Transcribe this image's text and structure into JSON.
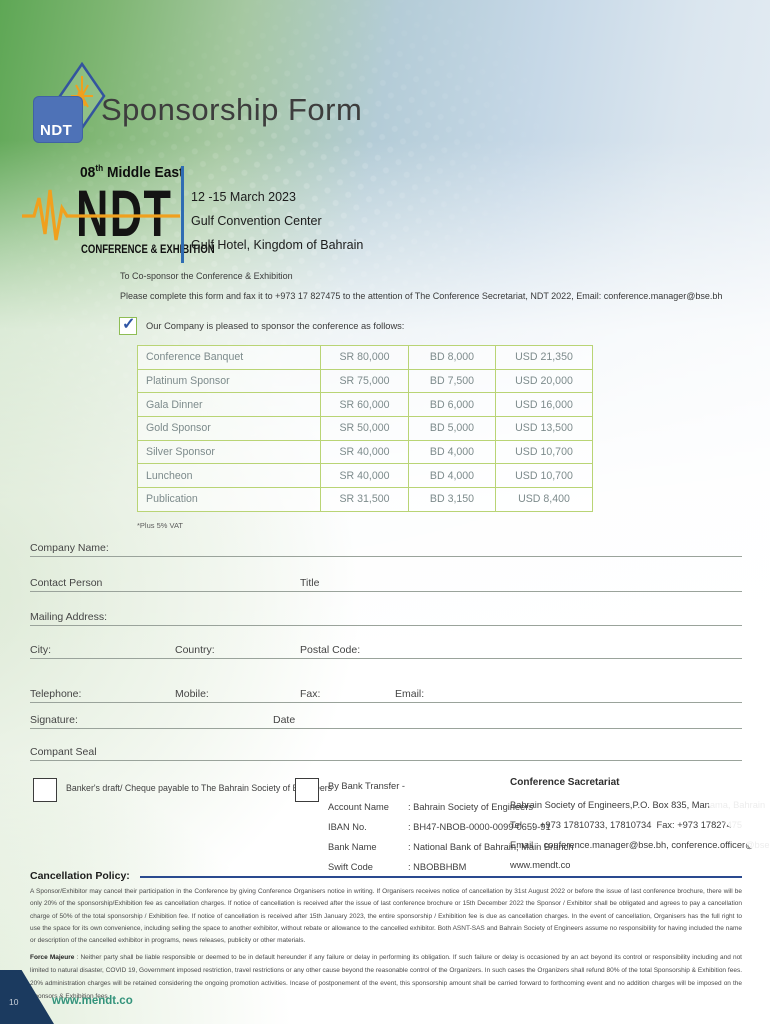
{
  "header": {
    "logo_text": "NDT",
    "title": "Sponsorship Form"
  },
  "event_logo": {
    "edition_prefix": "08",
    "edition_sup": "th",
    "edition_rest": " Middle East",
    "acronym": "NDT",
    "subtitle": "CONFERENCE & EXHIBITION",
    "date": "12 -15 March 2023",
    "venue1": "Gulf Convention Center",
    "venue2": "Gulf Hotel, Kingdom of Bahrain"
  },
  "intro": {
    "line1": "To Co-sponsor the Conference & Exhibition",
    "line2": "Please complete this form and fax it to +973 17 827475 to the attention of The Conference Secretariat, NDT 2022, Email: conference.manager@bse.bh",
    "check_glyph": "✓",
    "checkbox_label": "Our Company is pleased to sponsor the conference as follows:"
  },
  "pricing_table": {
    "rows": [
      {
        "name": "Conference Banquet",
        "sr": "SR 80,000",
        "bd": "BD 8,000",
        "usd": "USD 21,350"
      },
      {
        "name": "Platinum Sponsor",
        "sr": "SR 75,000",
        "bd": "BD 7,500",
        "usd": "USD 20,000"
      },
      {
        "name": "Gala Dinner",
        "sr": "SR 60,000",
        "bd": "BD 6,000",
        "usd": "USD 16,000"
      },
      {
        "name": "Gold Sponsor",
        "sr": "SR 50,000",
        "bd": "BD 5,000",
        "usd": "USD 13,500"
      },
      {
        "name": "Silver Sponsor",
        "sr": "SR 40,000",
        "bd": "BD 4,000",
        "usd": "USD 10,700"
      },
      {
        "name": "Luncheon",
        "sr": "SR 40,000",
        "bd": "BD 4,000",
        "usd": "USD 10,700"
      },
      {
        "name": "Publication",
        "sr": "SR 31,500",
        "bd": "BD 3,150",
        "usd": "USD 8,400"
      }
    ]
  },
  "vat_note": "*Plus 5% VAT",
  "form_fields": {
    "company_name": "Company Name:",
    "contact_person": "Contact Person",
    "title": "Title",
    "mailing_address": "Mailing Address:",
    "city": "City:",
    "country": "Country:",
    "postal_code": "Postal Code:",
    "telephone": "Telephone:",
    "mobile": "Mobile:",
    "fax": "Fax:",
    "email": "Email:",
    "signature": "Signature:",
    "date": "Date",
    "company_seal": "Compant Seal"
  },
  "payment": {
    "bankers_draft_label": "Banker's draft/ Cheque  payable to The Bahrain Society of Engineers",
    "bank_transfer_label": "By Bank Transfer -",
    "details": [
      {
        "label": "Account Name",
        "value": ": Bahrain Society of Engineers"
      },
      {
        "label": "IBAN No.",
        "value": ": BH47-NBOB-0000-0099-0659-91"
      },
      {
        "label": "Bank Name",
        "value": ": National Bank of Bahrain, Main Branch"
      },
      {
        "label": "Swift Code",
        "value": ": NBOBBHBM"
      }
    ]
  },
  "secretariat": {
    "heading": "Conference Sacretariat",
    "line1": "Bahrain Society of Engineers,P.O. Box 835, Manama, Bahrain",
    "line2": "Tel    :  +973 17810733, 17810734  Fax: +973 17827475",
    "line3": "Email :  conference.manager@bse.bh, conference.officer@bse.bh",
    "line4": "www.mendt.co"
  },
  "cancellation": {
    "heading": "Cancellation Policy:",
    "body": "A Sponsor/Exhibitor may cancel their participation in the Conference by giving Conference Organisers notice in writing. If Organisers receives notice of cancellation by 31st August 2022 or before the issue of last conference brochure, there will be only 20% of the sponsorship/Exhibition fee as cancellation charges. If notice of cancellation is received after the issue of last conference brochure or 15th December 2022 the Sponsor / Exhibitor shall be obligated and agrees to pay a cancellation charge of 50% of the total sponsorship / Exhibition fee. If notice of cancellation is received after 15th January 2023, the entire sponsorship / Exhibition fee is due as cancellation charges. In the event of cancellation, Organisers has the full right to use the space for its own convenience, including selling the space to another exhibitor, without rebate or allowance to the cancelled exhibitor. Both ASNT-SAS and Bahrain Society of Engineers assume no responsibility for having included the name or description of the cancelled exhibitor in programs, news releases, publicity or other materials."
  },
  "force_majeure": {
    "heading": "Force Majeure",
    "body": " : Neither party shall be liable responsible or deemed to be in default hereunder if any failure or delay in performing its obligation.  If such failure or delay is occasioned by an act beyond its control or responsibility including and not limited to natural disaster, COVID 19, Government imposed restriction, travel restrictions or any other cause beyond the reasonable control of the Organizers.  In such cases the Organizers shall refund 80% of the total Sponsorship & Exhibition fees.  20% administration charges will be retained considering the ongoing promotion activities. Incase of postponement of the event, this sponsorship amount shall be carried forward to forthcoming event and no addition charges will be imposed on the Sponsors & Exhibition fees."
  },
  "footer": {
    "page_number": "10",
    "website": "www.mendt.co"
  },
  "colors": {
    "accent_blue": "#2f6cb3",
    "navy": "#1b3a5f",
    "table_border": "#b9d475",
    "orange": "#f0a01e",
    "teal": "#33937b",
    "logo_blue": "#4e72b7"
  }
}
